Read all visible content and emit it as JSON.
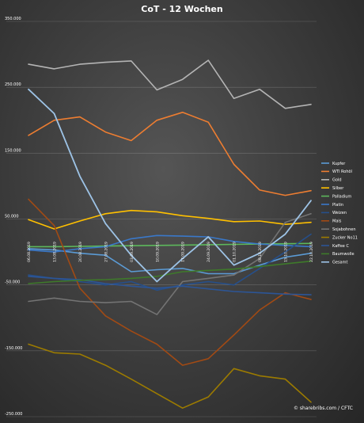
{
  "chart_data": {
    "type": "line",
    "title": "CoT - 12 Wochen",
    "credit": "© sharebribs.com / CFTC",
    "ylim": [
      -250000,
      350000
    ],
    "yticks": [
      350000,
      250000,
      150000,
      50000,
      -50000,
      -150000,
      -250000
    ],
    "ytick_labels": [
      "350.000",
      "250.000",
      "150.000",
      "50.000",
      "-50.000",
      "-150.000",
      "-250.000"
    ],
    "grid": true,
    "legend_position": "right",
    "categories": [
      "06.08.2019",
      "13.08.2019",
      "20.08.2019",
      "27.08.2019",
      "03.09.2019",
      "10.09.2019",
      "17.09.2019",
      "24.09.2019",
      "01.10.2019",
      "08.10.2019",
      "15.10.2019",
      "22.10.2019"
    ],
    "series": [
      {
        "name": "Kupfer",
        "color": "#5b9bd5",
        "width": 1.6,
        "values": [
          5000,
          3000,
          -2000,
          -5000,
          -30000,
          -27000,
          -25000,
          -33000,
          -33000,
          -20000,
          -8000,
          -2000
        ]
      },
      {
        "name": "WTI Rohöl",
        "color": "#ed7d31",
        "width": 1.6,
        "values": [
          177000,
          200000,
          205000,
          182000,
          169000,
          200000,
          212000,
          197000,
          133000,
          94000,
          86000,
          93000
        ]
      },
      {
        "name": "Gold",
        "color": "#b4b4b4",
        "width": 1.6,
        "values": [
          285000,
          278000,
          285000,
          288000,
          290000,
          246000,
          262000,
          291000,
          233000,
          247000,
          218000,
          224000
        ]
      },
      {
        "name": "Silber",
        "color": "#ffc000",
        "width": 1.6,
        "values": [
          49000,
          35000,
          47000,
          58000,
          63000,
          61000,
          55000,
          51000,
          46000,
          47000,
          42000,
          45000
        ]
      },
      {
        "name": "Palladium",
        "color": "#5db85c",
        "width": 1.6,
        "values": [
          8000,
          8000,
          8500,
          9000,
          9500,
          10000,
          10500,
          11000,
          11500,
          12000,
          12500,
          13000
        ]
      },
      {
        "name": "Platin",
        "color": "#3a78c9",
        "width": 1.6,
        "values": [
          3000,
          0,
          5000,
          8000,
          20000,
          25000,
          24000,
          23000,
          16000,
          12000,
          10000,
          8000
        ]
      },
      {
        "name": "Weizen",
        "color": "#264f8a",
        "width": 1.6,
        "values": [
          -35000,
          -40000,
          -45000,
          -50000,
          -45000,
          -58000,
          -50000,
          -45000,
          -50000,
          -25000,
          0,
          27000
        ]
      },
      {
        "name": "Mais",
        "color": "#a14a14",
        "width": 1.6,
        "values": [
          80000,
          40000,
          -55000,
          -97000,
          -120000,
          -140000,
          -172000,
          -162000,
          -126000,
          -88000,
          -62000,
          -72000
        ]
      },
      {
        "name": "Sojabohnen",
        "color": "#737373",
        "width": 1.6,
        "values": [
          -75000,
          -70000,
          -75000,
          -77000,
          -75000,
          -95000,
          -45000,
          -40000,
          -35000,
          -10000,
          45000,
          58000
        ]
      },
      {
        "name": "Zucker No11",
        "color": "#9c7b00",
        "width": 1.6,
        "values": [
          -140000,
          -153000,
          -155000,
          -172000,
          -193000,
          -215000,
          -237000,
          -220000,
          -177000,
          -188000,
          -193000,
          -228000
        ]
      },
      {
        "name": "Kaffee C",
        "color": "#2c5596",
        "width": 1.6,
        "values": [
          -37000,
          -40000,
          -42000,
          -48000,
          -52000,
          -55000,
          -52000,
          -56000,
          -60000,
          -62000,
          -64000,
          -65000
        ]
      },
      {
        "name": "Baumwolle",
        "color": "#3e7a2a",
        "width": 1.6,
        "values": [
          -48000,
          -45000,
          -43000,
          -42000,
          -40000,
          -37000,
          -30000,
          -28000,
          -26000,
          -22000,
          -18000,
          -14000
        ]
      },
      {
        "name": "Gesamt",
        "color": "#9dc3e6",
        "width": 1.8,
        "values": [
          247000,
          210000,
          115000,
          43000,
          -5000,
          -45000,
          -10000,
          23000,
          -20000,
          -2000,
          27000,
          78000
        ]
      }
    ]
  }
}
